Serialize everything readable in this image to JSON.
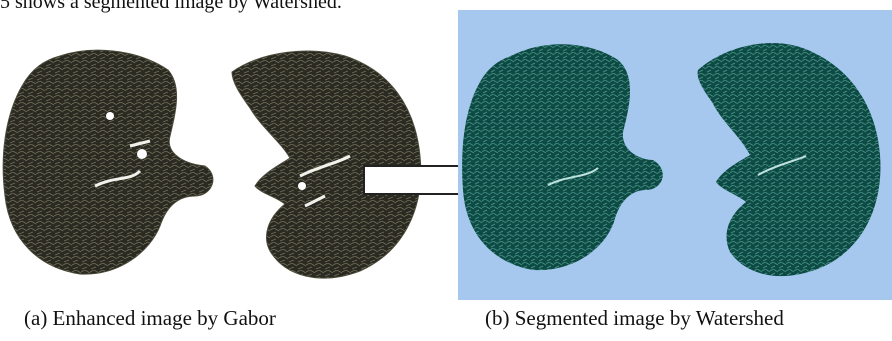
{
  "text": {
    "intro": "5 shows a segmented image by Watershed."
  },
  "figure": {
    "caption_a": "(a) Enhanced image by Gabor",
    "caption_b": "(b) Segmented image by Watershed"
  },
  "colors": {
    "enhanced_lung": "#2a2a22",
    "enhanced_texture": "#7b7b62",
    "segmented_background": "#a6c8ee",
    "segmented_lung": "#0e4a44",
    "segmented_texture": "#3f8a80"
  }
}
